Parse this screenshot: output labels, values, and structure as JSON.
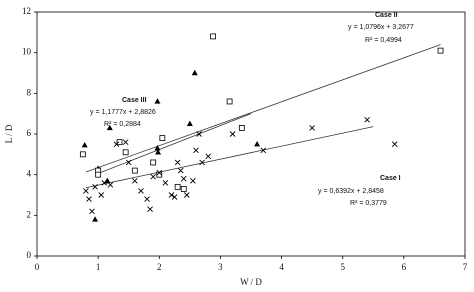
{
  "chart_data": {
    "type": "scatter",
    "x_label": "W / D",
    "y_label": "L / D",
    "xlim": [
      0,
      7
    ],
    "ylim": [
      0,
      12
    ],
    "xticks": [
      0,
      1,
      2,
      3,
      4,
      5,
      6,
      7
    ],
    "yticks": [
      0,
      2,
      4,
      6,
      8,
      10,
      12
    ],
    "grid": false,
    "series": [
      {
        "marker": "triangle",
        "color": "#000000",
        "x": [
          0.78,
          0.95,
          1.0,
          1.15,
          1.19,
          1.97,
          1.97,
          1.98,
          2.5,
          2.58,
          3.6
        ],
        "y": [
          5.45,
          1.8,
          4.3,
          3.7,
          6.3,
          7.6,
          5.3,
          5.1,
          6.5,
          9.0,
          5.5
        ]
      },
      {
        "marker": "square",
        "color": "#000000",
        "x": [
          0.75,
          1.0,
          1.0,
          1.35,
          1.45,
          1.6,
          1.9,
          2.0,
          2.05,
          2.3,
          2.4,
          2.88,
          3.15,
          3.35,
          6.6
        ],
        "y": [
          5.0,
          4.2,
          4.0,
          5.6,
          5.1,
          4.2,
          4.6,
          4.0,
          5.8,
          3.4,
          3.3,
          10.8,
          7.6,
          6.3,
          10.1
        ]
      },
      {
        "marker": "x",
        "color": "#000000",
        "x": [
          0.8,
          0.85,
          0.9,
          0.95,
          1.05,
          1.1,
          1.2,
          1.3,
          1.45,
          1.5,
          1.6,
          1.7,
          1.8,
          1.85,
          1.9,
          2.0,
          2.1,
          2.2,
          2.25,
          2.3,
          2.35,
          2.4,
          2.45,
          2.55,
          2.6,
          2.65,
          2.7,
          2.8,
          3.2,
          3.7,
          4.5,
          5.4,
          5.85
        ],
        "y": [
          3.2,
          2.8,
          2.2,
          3.4,
          3.0,
          3.6,
          3.5,
          5.5,
          5.6,
          4.6,
          3.7,
          3.2,
          2.8,
          2.3,
          3.9,
          4.1,
          3.6,
          3.0,
          2.9,
          4.6,
          4.2,
          3.8,
          3.0,
          3.7,
          5.2,
          6.0,
          4.6,
          4.9,
          6.0,
          5.2,
          6.3,
          6.7,
          5.5
        ]
      }
    ],
    "trendlines": [
      {
        "name": "Case I",
        "equation": "y = 0,6392x + 2,8458",
        "r2": "R² = 0,3779",
        "slope": 0.6392,
        "intercept": 2.8458,
        "x_range": [
          0.8,
          5.5
        ]
      },
      {
        "name": "Case II",
        "equation": "y = 1,0796x + 3,2677",
        "r2": "R² = 0,4994",
        "slope": 1.0796,
        "intercept": 3.2677,
        "x_range": [
          0.8,
          6.6
        ]
      },
      {
        "name": "Case III",
        "equation": "y = 1,1777x + 2,8826",
        "r2": "R² = 0,2884",
        "slope": 1.1777,
        "intercept": 2.8826,
        "x_range": [
          1.0,
          3.5
        ]
      }
    ]
  }
}
